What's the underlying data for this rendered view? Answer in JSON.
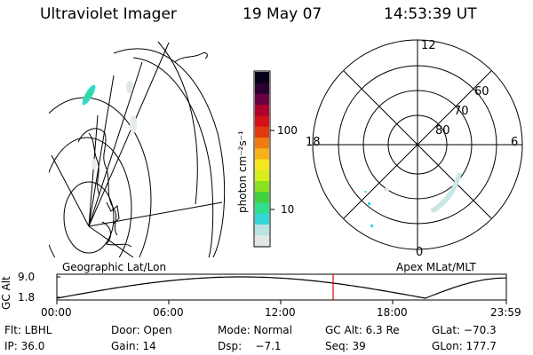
{
  "header": {
    "instrument": "Ultraviolet Imager",
    "date": "19 May 07",
    "time": "14:53:39 UT"
  },
  "colorbar": {
    "unit_label": "photon cm⁻²s⁻¹",
    "ticks": [
      "100",
      "10"
    ],
    "colors": [
      "#dfe7e7",
      "#b9e2e2",
      "#33d7d7",
      "#2fe08a",
      "#3fd13f",
      "#8be21f",
      "#d7ef1c",
      "#f7e61a",
      "#f7b21a",
      "#f27a12",
      "#e03a10",
      "#d61018",
      "#b0002a",
      "#6a0040",
      "#2a0030",
      "#050018"
    ]
  },
  "map": {
    "left_label": "Geographic Lat/Lon",
    "right_label": "Apex MLat/MLT"
  },
  "polar": {
    "mlt_labels": {
      "top": "12",
      "left": "18",
      "right": "6",
      "bottom": "0"
    },
    "lat_labels": [
      "60",
      "70",
      "80"
    ]
  },
  "timeline": {
    "y_label": "GC Alt",
    "y_ticks": [
      "9.0",
      "1.8"
    ],
    "x_ticks": [
      "00:00",
      "06:00",
      "12:00",
      "18:00",
      "23:59"
    ],
    "current_marker_color": "#e00000"
  },
  "info": {
    "flt": "Flt: LBHL",
    "door": "Door: Open",
    "mode": "Mode: Normal",
    "gc_alt": "GC Alt: 6.3 Re",
    "glat": "GLat: −70.3",
    "ip": "IP: 36.0",
    "gain": "Gain: 14",
    "dsp": "Dsp:    −7.1",
    "seq": "Seq: 39",
    "glon": "GLon: 177.7"
  }
}
